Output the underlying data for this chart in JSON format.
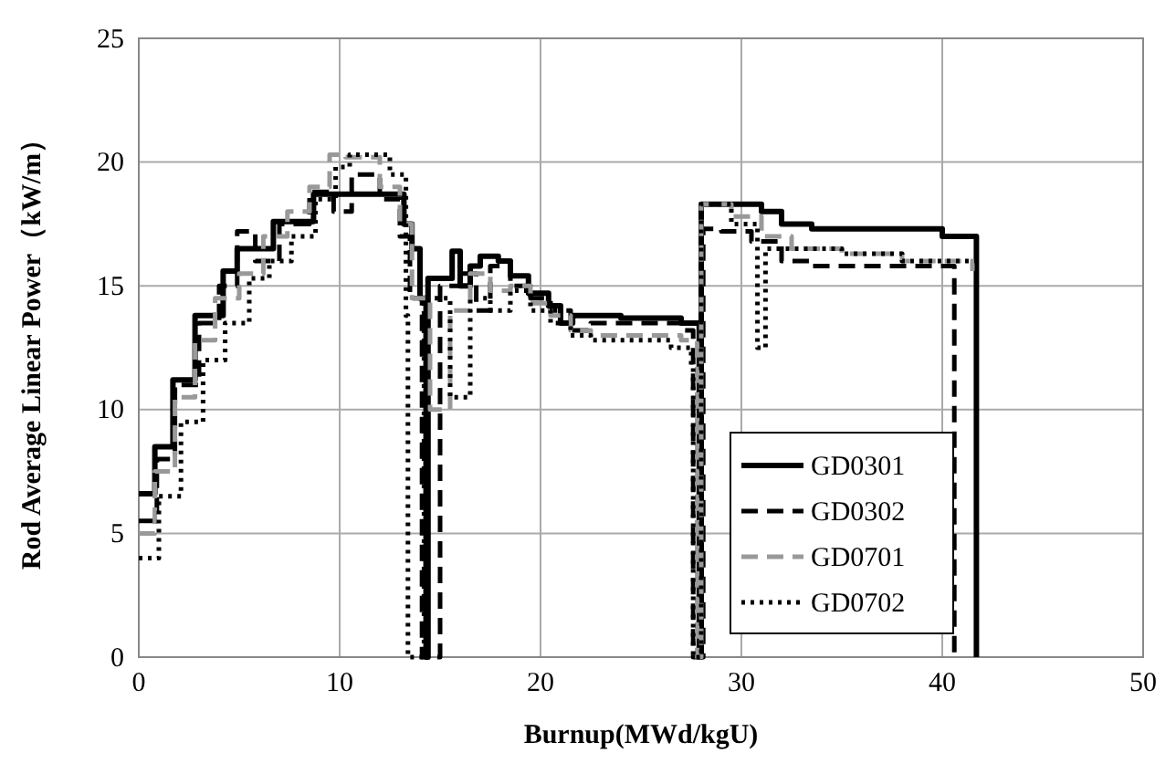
{
  "chart_data": {
    "type": "step",
    "xlabel": "Burnup(MWd/kgU)",
    "ylabel": "Rod Average Linear Power（kW/m）",
    "xlim": [
      0,
      50
    ],
    "xticks": [
      0,
      10,
      20,
      30,
      40,
      50
    ],
    "ylim": [
      0,
      25
    ],
    "yticks": [
      0,
      5,
      10,
      15,
      20,
      25
    ],
    "grid": true,
    "legend": "bottom right",
    "series": [
      {
        "name": "GD0301",
        "color": "#000000",
        "line_style": "solid",
        "x": [
          0,
          0.8,
          1.7,
          2.8,
          4.2,
          4.9,
          6.7,
          8.7,
          13.2,
          13.6,
          14.0,
          14.3,
          14.4,
          15.6,
          16.0,
          16.5,
          17.0,
          17.9,
          18.5,
          19.4,
          20.4,
          21.0,
          21.6,
          24.0,
          27.0,
          27.9,
          28.0,
          31.0,
          32.0,
          33.5,
          35.5,
          40.0,
          41.7
        ],
        "values": [
          6.6,
          8.5,
          11.2,
          13.8,
          15.6,
          16.5,
          17.6,
          18.7,
          17.5,
          16.5,
          14.5,
          0,
          15.3,
          16.4,
          15.0,
          15.8,
          16.2,
          16.0,
          15.4,
          14.7,
          14.2,
          13.5,
          13.8,
          13.7,
          13.5,
          0,
          18.3,
          18.0,
          17.5,
          17.3,
          17.3,
          17.0,
          0
        ]
      },
      {
        "name": "GD0302",
        "color": "#000000",
        "line_style": "dashed",
        "x": [
          0,
          0.9,
          1.8,
          3.0,
          4.0,
          4.9,
          5.8,
          7.0,
          8.5,
          9.7,
          10.6,
          12.0,
          13.0,
          13.5,
          14.1,
          15.0,
          16.0,
          16.8,
          17.5,
          18.5,
          19.5,
          20.5,
          21.5,
          22.5,
          27.0,
          27.6,
          28.1,
          29.0,
          30.5,
          32.0,
          33.5,
          35.0,
          40.6
        ],
        "values": [
          5.5,
          8.0,
          11.0,
          13.5,
          15.0,
          17.2,
          16.0,
          17.5,
          18.8,
          18.0,
          19.5,
          18.5,
          17.0,
          14.5,
          0,
          15.0,
          15.5,
          14.0,
          15.8,
          15.0,
          14.5,
          14.0,
          13.2,
          13.5,
          13.2,
          0,
          17.3,
          17.2,
          16.8,
          16.0,
          15.8,
          15.8,
          0
        ]
      },
      {
        "name": "GD0701",
        "color": "#999999",
        "line_style": "dashed",
        "x": [
          0,
          0.8,
          1.8,
          2.8,
          3.8,
          5.0,
          6.2,
          7.4,
          8.5,
          9.5,
          10.3,
          12.0,
          13.0,
          13.6,
          14.5,
          15.5,
          16.5,
          17.5,
          18.5,
          19.5,
          20.5,
          21.5,
          22.5,
          27.0,
          27.8,
          28.0,
          29.5,
          31.0,
          32.5,
          35.0,
          38.0,
          41.5
        ],
        "values": [
          5.0,
          7.5,
          10.5,
          12.8,
          14.5,
          15.5,
          17.0,
          18.0,
          19.0,
          20.3,
          20.2,
          19.0,
          17.5,
          14.5,
          10.0,
          14.0,
          15.5,
          14.8,
          15.0,
          14.3,
          13.8,
          13.2,
          13.0,
          12.8,
          0,
          18.3,
          17.8,
          17.0,
          16.5,
          16.3,
          16.0,
          15.6
        ]
      },
      {
        "name": "GD0702",
        "color": "#000000",
        "line_style": "dotted",
        "x": [
          0,
          1.0,
          2.1,
          3.2,
          4.3,
          5.5,
          6.5,
          7.6,
          8.8,
          9.8,
          10.5,
          12.5,
          13.3,
          13.4,
          14.2,
          15.5,
          16.5,
          17.5,
          18.5,
          19.5,
          20.5,
          21.5,
          22.5,
          26.5,
          27.5,
          27.6,
          28.0,
          29.5,
          30.8,
          31.2,
          32.0,
          35.0,
          38.0,
          41.8
        ],
        "values": [
          4.0,
          6.5,
          9.5,
          12.0,
          13.5,
          15.3,
          16.0,
          17.0,
          18.5,
          19.8,
          20.3,
          19.5,
          13.8,
          0,
          14.5,
          10.5,
          14.5,
          14.0,
          14.8,
          14.0,
          13.5,
          13.0,
          12.8,
          12.5,
          11.8,
          0,
          18.3,
          17.5,
          12.5,
          16.5,
          16.5,
          16.3,
          16.0,
          16.0
        ]
      }
    ]
  }
}
